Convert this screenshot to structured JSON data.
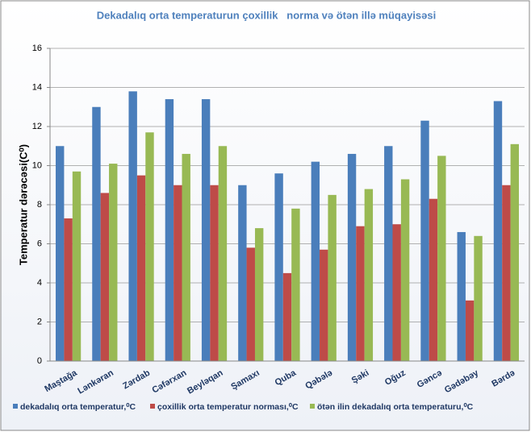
{
  "chart_data": {
    "type": "bar",
    "title": "Dekadalıq orta temperaturun çoxillik   norma və ötən illə müqayisəsi",
    "y_label": "Temperatur dərəcəsi(C⁰)",
    "categories": [
      "Maştağa",
      "Lənkəran",
      "Zərdab",
      "Cəfərxan",
      "Beyləqan",
      "Şamaxı",
      "Quba",
      "Qəbələ",
      "Şəki",
      "Oğuz",
      "Gəncə",
      "Gədəbəy",
      "Bərdə"
    ],
    "series": [
      {
        "name": "dekadalıq orta temperatur,⁰C",
        "color": "#4a7ebb",
        "values": [
          11,
          13,
          13.8,
          13.4,
          13.4,
          9,
          9.6,
          10.2,
          10.6,
          11,
          12.3,
          6.6,
          13.3
        ]
      },
      {
        "name": "çoxillik orta temperatur norması,⁰C",
        "color": "#be4b48",
        "values": [
          7.3,
          8.6,
          9.5,
          9,
          9,
          5.8,
          4.5,
          5.7,
          6.9,
          7,
          8.3,
          3.1,
          9
        ]
      },
      {
        "name": "ötən ilin dekadalıq orta temperaturu,⁰C",
        "color": "#98b954",
        "values": [
          9.7,
          10.1,
          11.7,
          10.6,
          11,
          6.8,
          7.8,
          8.5,
          8.8,
          9.3,
          10.5,
          6.4,
          11.1
        ]
      }
    ],
    "ylim": [
      0,
      16
    ],
    "yticks": [
      0,
      2,
      4,
      6,
      8,
      10,
      12,
      14,
      16
    ],
    "grid": true,
    "legend": "bottom"
  }
}
